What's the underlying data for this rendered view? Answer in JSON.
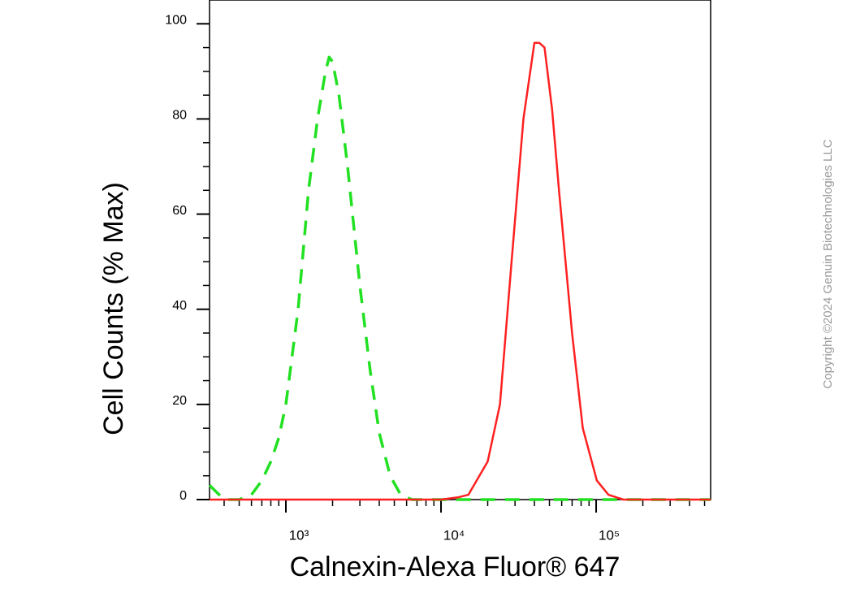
{
  "chart_data": {
    "type": "line",
    "xlabel": "Calnexin-Alexa Fluor® 647",
    "ylabel": "Cell Counts (% Max)",
    "copyright": "Copyright ©2024 Genuin Biotechnologies LLC",
    "xscale": "log",
    "xlim": [
      322,
      547000
    ],
    "ylim": [
      0,
      105
    ],
    "xticks": [
      {
        "value": 1000,
        "label": "10³"
      },
      {
        "value": 10000,
        "label": "10⁴"
      },
      {
        "value": 100000,
        "label": "10⁵"
      }
    ],
    "xminor_ticks": [
      400,
      500,
      600,
      700,
      800,
      900,
      2000,
      3000,
      4000,
      5000,
      6000,
      7000,
      8000,
      9000,
      20000,
      30000,
      40000,
      50000,
      60000,
      70000,
      80000,
      90000,
      200000,
      300000,
      400000,
      500000
    ],
    "yticks": [
      0,
      20,
      40,
      60,
      80,
      100
    ],
    "yminor_ticks": [
      5,
      10,
      15,
      25,
      30,
      35,
      45,
      50,
      55,
      65,
      70,
      75,
      85,
      90,
      95
    ],
    "series": [
      {
        "color": "#22e022",
        "dashed": true,
        "x": [
          322,
          400,
          500,
          600,
          700,
          800,
          900,
          1000,
          1200,
          1400,
          1600,
          1800,
          1900,
          2000,
          2200,
          2500,
          3000,
          3500,
          4000,
          4700,
          5500,
          6500,
          10000,
          100000,
          547000
        ],
        "values": [
          3,
          0,
          0,
          1,
          4,
          8,
          13,
          20,
          40,
          65,
          80,
          90,
          93,
          92,
          85,
          70,
          45,
          27,
          14,
          5,
          1,
          0,
          0,
          0,
          0
        ]
      },
      {
        "color": "#ff2020",
        "dashed": false,
        "x": [
          322,
          5000,
          10000,
          13000,
          15000,
          20000,
          24000,
          28500,
          34000,
          40000,
          43000,
          46500,
          52000,
          57600,
          70000,
          82000,
          101000,
          120000,
          150000,
          547000
        ],
        "values": [
          0,
          0,
          0,
          0.5,
          1,
          8,
          20,
          50,
          80,
          96,
          96,
          95,
          82,
          65,
          35,
          15,
          4,
          1,
          0,
          0
        ]
      }
    ]
  }
}
